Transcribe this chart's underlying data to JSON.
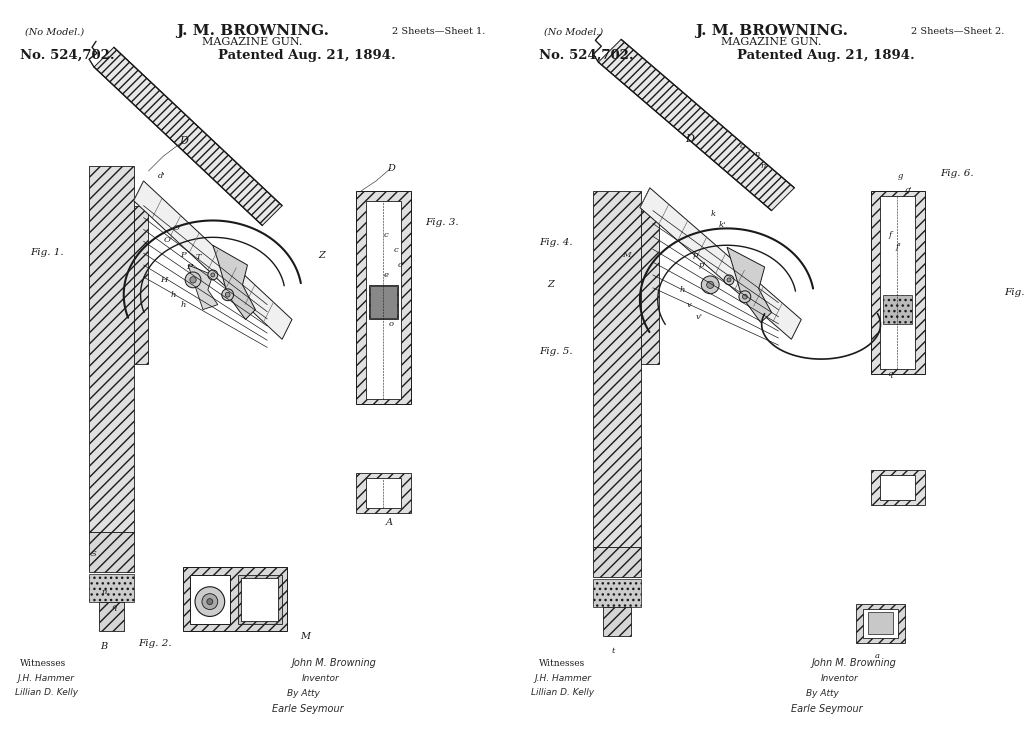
{
  "bg_color": "#ffffff",
  "separator_color": "#888888",
  "text_color": "#1a1a1a",
  "line_color": "#1a1a1a",
  "sheet1": {
    "no_model": "(No Model.)",
    "sheets": "2 Sheets—Sheet 1.",
    "inventor": "J. M. BROWNING.",
    "gun_type": "MAGAZINE GUN.",
    "patent_no": "No. 524,702.",
    "patented": "Patented Aug. 21, 1894."
  },
  "sheet2": {
    "no_model": "(No Model.)",
    "sheets": "2 Sheets—Sheet 2.",
    "inventor": "J. M. BROWNING.",
    "gun_type": "MAGAZINE GUN.",
    "patent_no": "No. 524,702.",
    "patented": "Patented Aug. 21, 1894."
  }
}
